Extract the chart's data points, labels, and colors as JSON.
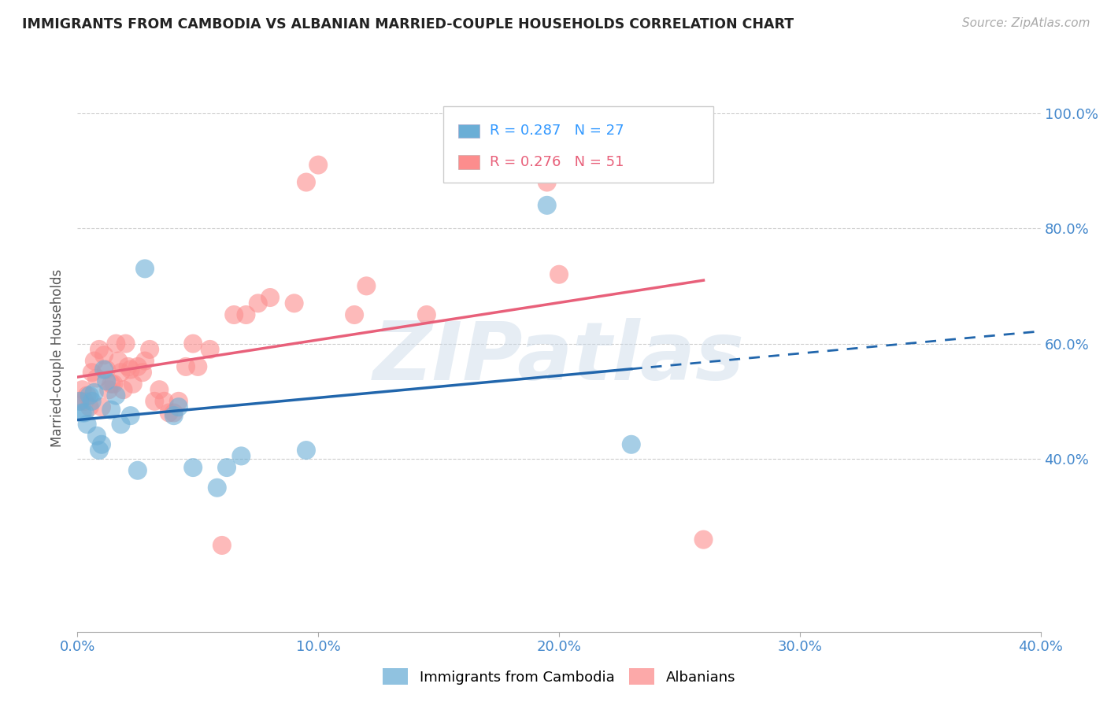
{
  "title": "IMMIGRANTS FROM CAMBODIA VS ALBANIAN MARRIED-COUPLE HOUSEHOLDS CORRELATION CHART",
  "source": "Source: ZipAtlas.com",
  "ylabel_label": "Married-couple Households",
  "xlim": [
    0.0,
    0.4
  ],
  "ylim": [
    0.1,
    1.05
  ],
  "ytick_vals": [
    0.2,
    0.4,
    0.6,
    0.8,
    1.0
  ],
  "xtick_vals": [
    0.0,
    0.1,
    0.2,
    0.3,
    0.4
  ],
  "xtick_labels": [
    "0.0%",
    "10.0%",
    "20.0%",
    "30.0%",
    "40.0%"
  ],
  "right_ytick_labels": [
    "100.0%",
    "80.0%",
    "60.0%",
    "40.0%"
  ],
  "right_ytick_vals": [
    1.0,
    0.8,
    0.6,
    0.4
  ],
  "legend_R_cambodia": "0.287",
  "legend_N_cambodia": "27",
  "legend_R_albanian": "0.276",
  "legend_N_albanian": "51",
  "watermark": "ZIPatlas",
  "cambodia_color": "#6baed6",
  "albanian_color": "#fc8d8d",
  "cambodia_line_color": "#2166ac",
  "albanian_line_color": "#e8607a",
  "background_color": "#ffffff",
  "grid_color": "#cccccc",
  "cambodia_x": [
    0.001,
    0.002,
    0.003,
    0.004,
    0.005,
    0.006,
    0.007,
    0.008,
    0.009,
    0.01,
    0.011,
    0.012,
    0.014,
    0.016,
    0.018,
    0.022,
    0.025,
    0.028,
    0.04,
    0.042,
    0.048,
    0.058,
    0.062,
    0.068,
    0.095,
    0.195,
    0.23
  ],
  "cambodia_y": [
    0.5,
    0.48,
    0.48,
    0.46,
    0.51,
    0.5,
    0.515,
    0.44,
    0.415,
    0.425,
    0.555,
    0.535,
    0.485,
    0.51,
    0.46,
    0.475,
    0.38,
    0.73,
    0.475,
    0.49,
    0.385,
    0.35,
    0.385,
    0.405,
    0.415,
    0.84,
    0.425
  ],
  "albanian_x": [
    0.001,
    0.002,
    0.003,
    0.004,
    0.005,
    0.006,
    0.007,
    0.008,
    0.009,
    0.01,
    0.011,
    0.012,
    0.013,
    0.014,
    0.015,
    0.016,
    0.017,
    0.018,
    0.019,
    0.02,
    0.021,
    0.022,
    0.023,
    0.025,
    0.027,
    0.028,
    0.03,
    0.032,
    0.034,
    0.036,
    0.038,
    0.04,
    0.042,
    0.045,
    0.048,
    0.05,
    0.055,
    0.06,
    0.065,
    0.07,
    0.075,
    0.08,
    0.09,
    0.095,
    0.1,
    0.115,
    0.12,
    0.145,
    0.195,
    0.2,
    0.26
  ],
  "albanian_y": [
    0.5,
    0.52,
    0.5,
    0.51,
    0.49,
    0.55,
    0.57,
    0.54,
    0.59,
    0.49,
    0.58,
    0.555,
    0.52,
    0.53,
    0.53,
    0.6,
    0.57,
    0.55,
    0.52,
    0.6,
    0.56,
    0.555,
    0.53,
    0.56,
    0.55,
    0.57,
    0.59,
    0.5,
    0.52,
    0.5,
    0.48,
    0.48,
    0.5,
    0.56,
    0.6,
    0.56,
    0.59,
    0.25,
    0.65,
    0.65,
    0.67,
    0.68,
    0.67,
    0.88,
    0.91,
    0.65,
    0.7,
    0.65,
    0.88,
    0.72,
    0.26
  ]
}
